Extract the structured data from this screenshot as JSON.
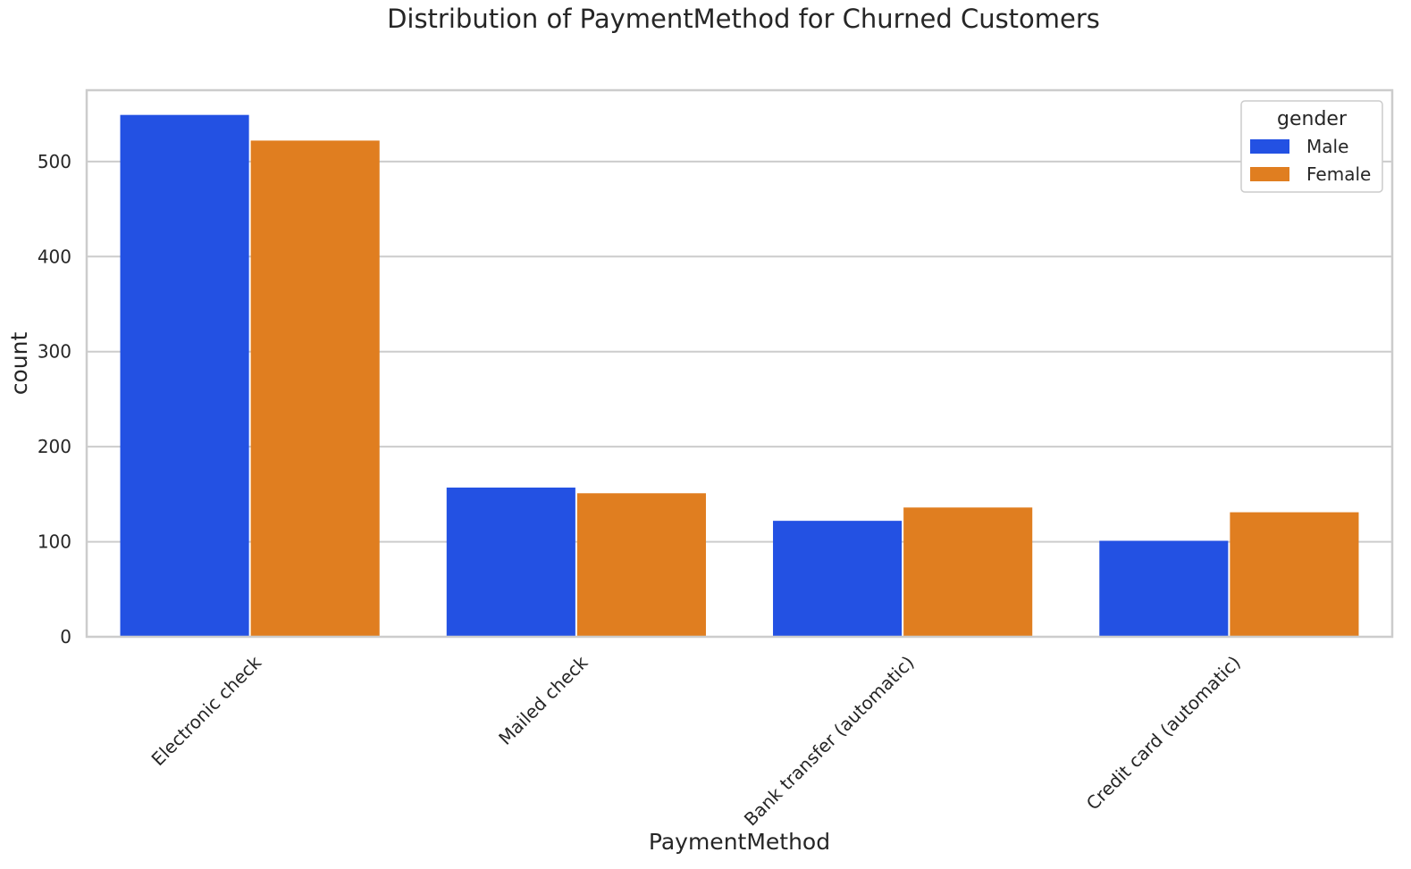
{
  "chart_data": {
    "type": "bar",
    "title": "Distribution of PaymentMethod for Churned Customers",
    "xlabel": "PaymentMethod",
    "ylabel": "count",
    "categories": [
      "Electronic check",
      "Mailed check",
      "Bank transfer (automatic)",
      "Credit card (automatic)"
    ],
    "series": [
      {
        "name": "Male",
        "color": "#2351e3",
        "values": [
          549,
          157,
          122,
          101
        ]
      },
      {
        "name": "Female",
        "color": "#e07e20",
        "values": [
          522,
          151,
          136,
          131
        ]
      }
    ],
    "yticks": [
      0,
      100,
      200,
      300,
      400,
      500
    ],
    "ylim": [
      0,
      575
    ],
    "grid": true,
    "legend": {
      "title": "gender",
      "position": "top-right"
    }
  }
}
